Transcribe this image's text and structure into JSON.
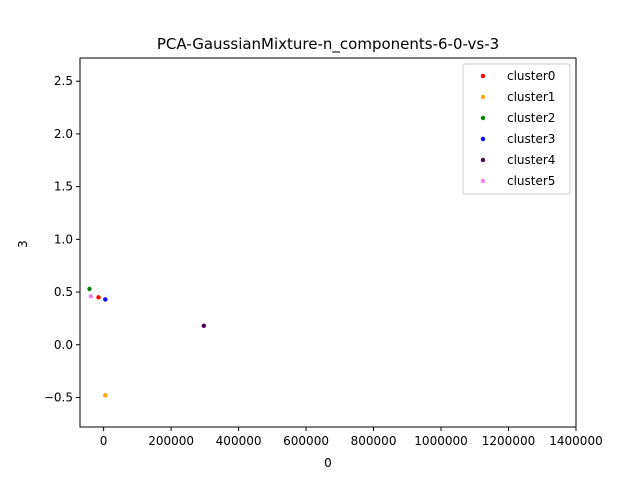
{
  "chart_data": {
    "type": "scatter",
    "title": "PCA-GaussianMixture-n_components-6-0-vs-3",
    "xlabel": "0",
    "ylabel": "3",
    "xlim": [
      -70000,
      1400000
    ],
    "ylim": [
      -0.78,
      2.72
    ],
    "xticks": [
      0,
      200000,
      400000,
      600000,
      800000,
      1000000,
      1200000,
      1400000
    ],
    "xtick_labels": [
      "0",
      "200000",
      "400000",
      "600000",
      "800000",
      "1000000",
      "1200000",
      "1400000"
    ],
    "yticks": [
      -0.5,
      0.0,
      0.5,
      1.0,
      1.5,
      2.0,
      2.5
    ],
    "ytick_labels": [
      "−0.5",
      "0.0",
      "0.5",
      "1.0",
      "1.5",
      "2.0",
      "2.5"
    ],
    "grid": false,
    "legend_position": "top-right",
    "series": [
      {
        "name": "cluster0",
        "color": "#ff0000",
        "points": [
          [
            -15000,
            0.45
          ]
        ]
      },
      {
        "name": "cluster1",
        "color": "#ffa500",
        "points": [
          [
            5000,
            -0.48
          ]
        ]
      },
      {
        "name": "cluster2",
        "color": "#008000",
        "points": [
          [
            -42000,
            0.53
          ]
        ]
      },
      {
        "name": "cluster3",
        "color": "#0000ff",
        "points": [
          [
            5000,
            0.43
          ]
        ]
      },
      {
        "name": "cluster4",
        "color": "#4b0050",
        "points": [
          [
            297000,
            0.18
          ]
        ]
      },
      {
        "name": "cluster5",
        "color": "#ee82ee",
        "points": [
          [
            -38000,
            0.46
          ]
        ]
      }
    ]
  }
}
